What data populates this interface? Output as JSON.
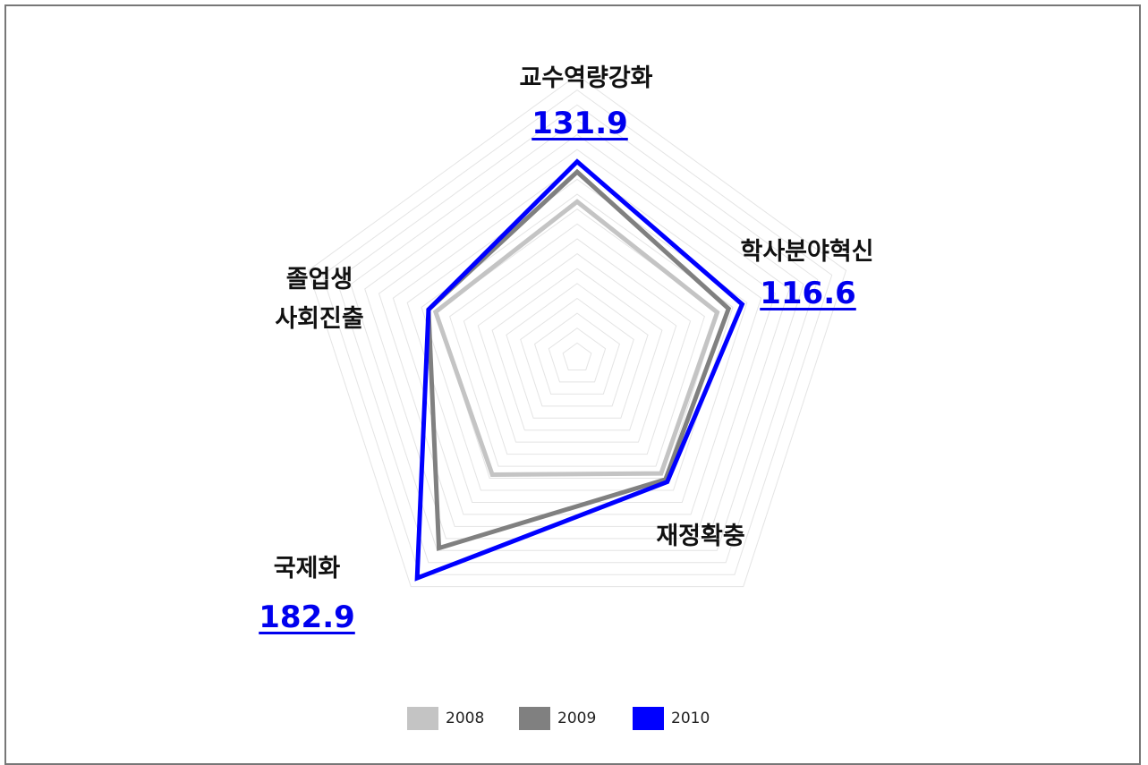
{
  "chart_data": {
    "type": "radar",
    "categories": [
      "교수역량강화",
      "학사분야혁신",
      "재정확충",
      "국제화",
      "졸업생\n사회진출"
    ],
    "series": [
      {
        "name": "2008",
        "color": "#c4c4c4",
        "values": [
          105,
          99,
          96,
          97,
          100
        ]
      },
      {
        "name": "2009",
        "color": "#808080",
        "values": [
          125,
          107,
          101,
          158,
          105
        ]
      },
      {
        "name": "2010",
        "color": "#0000ff",
        "values": [
          131.9,
          116.6,
          103,
          182.9,
          105
        ]
      }
    ],
    "ylim": [
      0,
      190
    ],
    "yticks": [
      10,
      20,
      30,
      40,
      50,
      60,
      70,
      80,
      90,
      100,
      110,
      120,
      130,
      140,
      150,
      160,
      170,
      180,
      190
    ],
    "grid": true
  }
}
